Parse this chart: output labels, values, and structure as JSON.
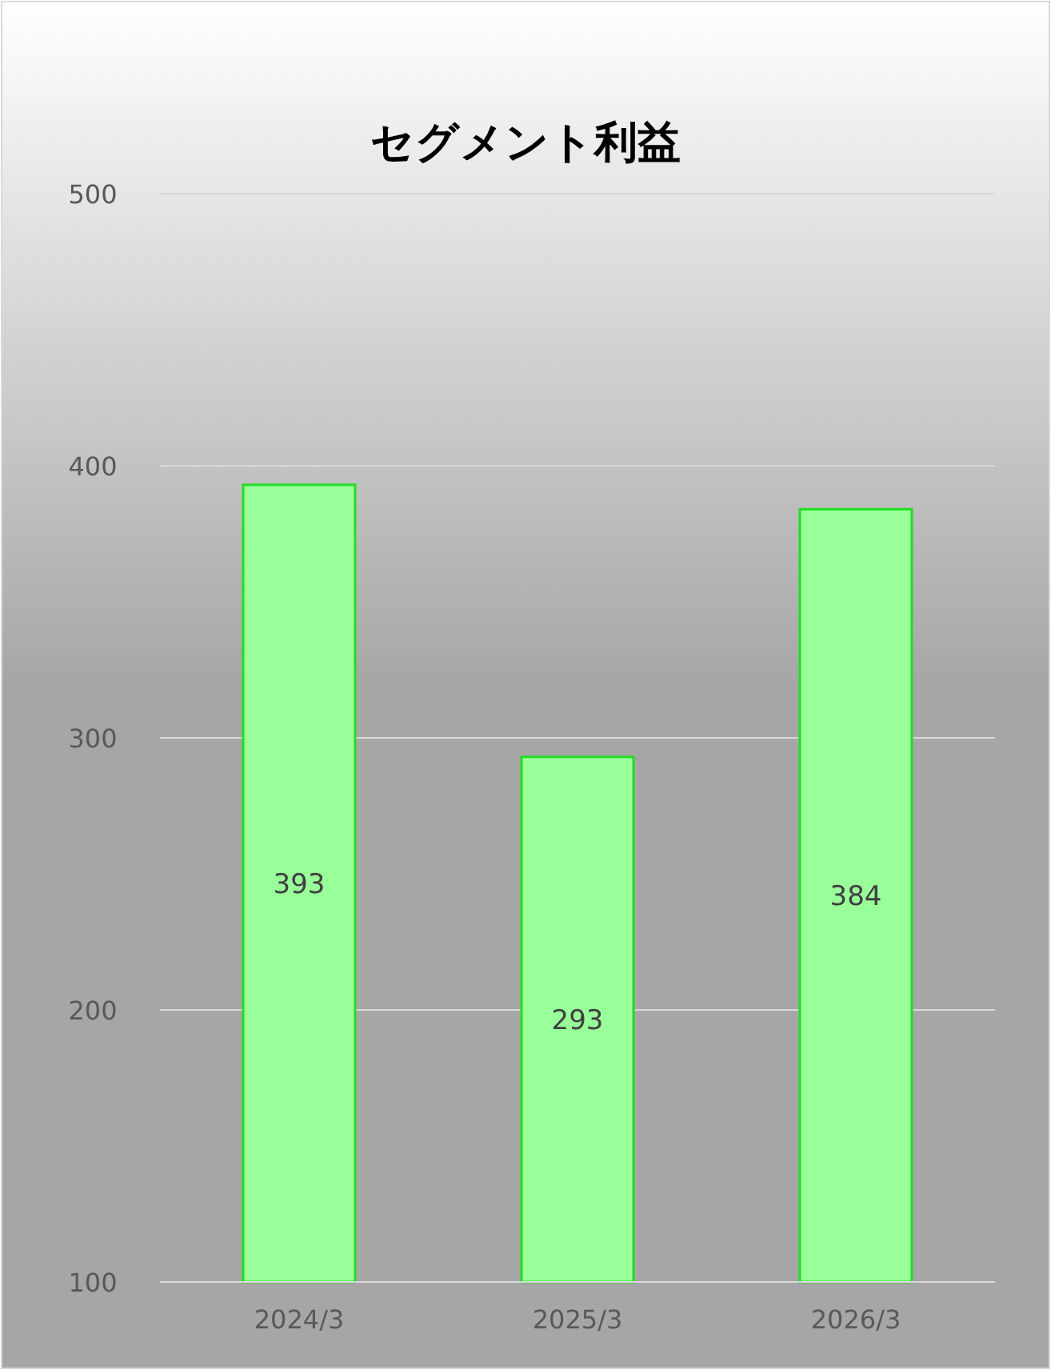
{
  "chart_data": {
    "type": "bar",
    "title": "セグメント利益",
    "categories": [
      "2024/3",
      "2025/3",
      "2026/3"
    ],
    "values": [
      393,
      293,
      384
    ],
    "color": "#99ff99",
    "ylim": [
      100,
      500
    ],
    "yticks": [
      100,
      200,
      300,
      400,
      500
    ],
    "grid": "y",
    "data_labels": true
  }
}
